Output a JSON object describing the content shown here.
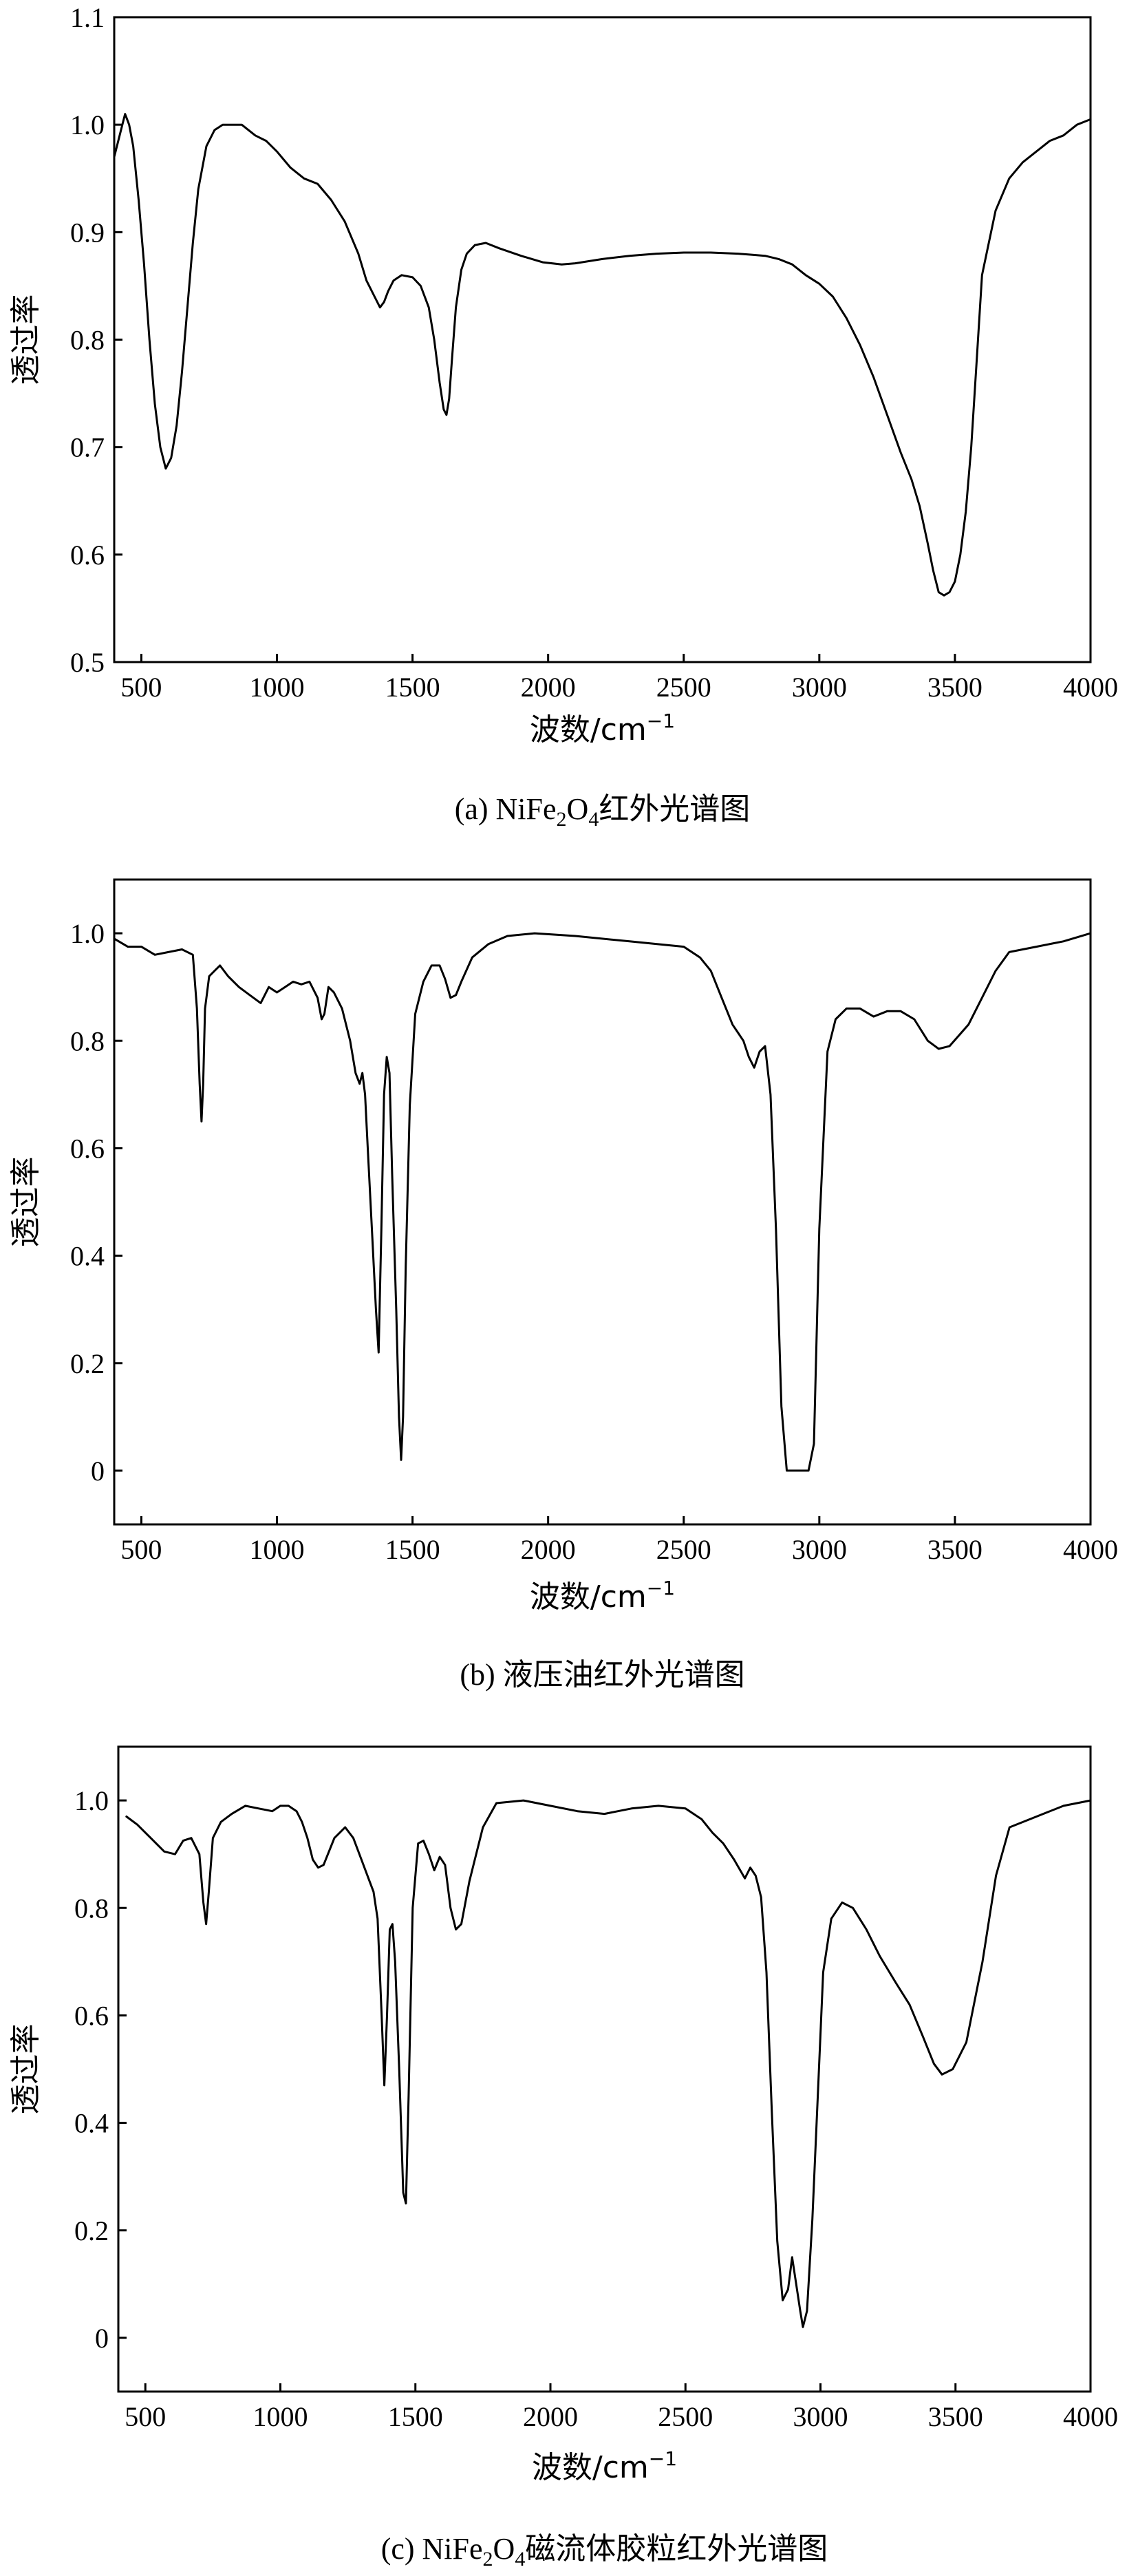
{
  "chart_data": [
    {
      "type": "line",
      "caption": "(a) NiFe₂O₄红外光谱图",
      "caption_parts": {
        "prefix": "(a) NiFe",
        "sub1": "2",
        "mid": "O",
        "sub2": "4",
        "suffix": "红外光谱图"
      },
      "xlabel": "波数/cm⁻¹",
      "xlabel_parts": {
        "base": "波数/cm",
        "sup": "−1"
      },
      "ylabel": "透过率",
      "xlim": [
        400,
        4000
      ],
      "ylim": [
        0.5,
        1.1
      ],
      "xticks": [
        500,
        1000,
        1500,
        2000,
        2500,
        3000,
        3500,
        4000
      ],
      "yticks": [
        0.5,
        0.6,
        0.7,
        0.8,
        0.9,
        1.0,
        1.1
      ],
      "ytick_labels": [
        "0.5",
        "0.6",
        "0.7",
        "0.8",
        "0.9",
        "1.0",
        "1.1"
      ],
      "grid": false,
      "series": [
        {
          "x": [
            400,
            420,
            440,
            455,
            470,
            490,
            510,
            530,
            550,
            570,
            590,
            610,
            630,
            650,
            670,
            690,
            710,
            740,
            770,
            800,
            830,
            870,
            920,
            960,
            1000,
            1050,
            1100,
            1150,
            1200,
            1250,
            1300,
            1330,
            1360,
            1380,
            1395,
            1410,
            1430,
            1460,
            1500,
            1530,
            1560,
            1580,
            1600,
            1615,
            1625,
            1635,
            1645,
            1660,
            1680,
            1700,
            1730,
            1770,
            1820,
            1900,
            1980,
            2050,
            2100,
            2200,
            2300,
            2400,
            2500,
            2600,
            2700,
            2750,
            2800,
            2850,
            2900,
            2950,
            3000,
            3050,
            3100,
            3150,
            3200,
            3250,
            3300,
            3340,
            3370,
            3400,
            3420,
            3440,
            3460,
            3480,
            3500,
            3520,
            3540,
            3560,
            3580,
            3600,
            3650,
            3700,
            3750,
            3800,
            3850,
            3900,
            3950,
            4000
          ],
          "y": [
            0.97,
            0.99,
            1.01,
            1.0,
            0.98,
            0.93,
            0.87,
            0.8,
            0.74,
            0.7,
            0.68,
            0.69,
            0.72,
            0.77,
            0.83,
            0.89,
            0.94,
            0.98,
            0.995,
            1.0,
            1.0,
            1.0,
            0.99,
            0.985,
            0.975,
            0.96,
            0.95,
            0.945,
            0.93,
            0.91,
            0.88,
            0.855,
            0.84,
            0.83,
            0.835,
            0.845,
            0.855,
            0.86,
            0.858,
            0.85,
            0.83,
            0.8,
            0.76,
            0.735,
            0.73,
            0.745,
            0.78,
            0.83,
            0.865,
            0.88,
            0.888,
            0.89,
            0.885,
            0.878,
            0.872,
            0.87,
            0.871,
            0.875,
            0.878,
            0.88,
            0.881,
            0.881,
            0.88,
            0.879,
            0.878,
            0.875,
            0.87,
            0.86,
            0.852,
            0.84,
            0.82,
            0.795,
            0.765,
            0.73,
            0.695,
            0.67,
            0.645,
            0.61,
            0.585,
            0.565,
            0.562,
            0.565,
            0.575,
            0.6,
            0.64,
            0.7,
            0.78,
            0.86,
            0.92,
            0.95,
            0.965,
            0.975,
            0.985,
            0.99,
            1.0,
            1.005
          ],
          "stroke": "#000000"
        }
      ]
    },
    {
      "type": "line",
      "caption": "(b) 液压油红外光谱图",
      "caption_parts": {
        "prefix": "(b) 液压油红外光谱图"
      },
      "xlabel": "波数/cm⁻¹",
      "xlabel_parts": {
        "base": "波数/cm",
        "sup": "−1"
      },
      "ylabel": "透过率",
      "xlim": [
        400,
        4000
      ],
      "ylim": [
        -0.1,
        1.1
      ],
      "xticks": [
        500,
        1000,
        1500,
        2000,
        2500,
        3000,
        3500,
        4000
      ],
      "yticks": [
        0,
        0.2,
        0.4,
        0.6,
        0.8,
        1.0
      ],
      "ytick_labels": [
        "0",
        "0.2",
        "0.4",
        "0.6",
        "0.8",
        "1.0"
      ],
      "grid": false,
      "series": [
        {
          "x": [
            400,
            450,
            500,
            550,
            600,
            650,
            690,
            705,
            715,
            722,
            728,
            735,
            750,
            770,
            790,
            820,
            860,
            900,
            940,
            970,
            1000,
            1030,
            1060,
            1090,
            1120,
            1150,
            1165,
            1175,
            1190,
            1210,
            1240,
            1270,
            1290,
            1305,
            1315,
            1325,
            1335,
            1350,
            1365,
            1375,
            1385,
            1395,
            1405,
            1415,
            1425,
            1440,
            1450,
            1458,
            1465,
            1475,
            1490,
            1510,
            1540,
            1570,
            1600,
            1620,
            1640,
            1660,
            1680,
            1720,
            1780,
            1850,
            1950,
            2100,
            2300,
            2500,
            2560,
            2600,
            2640,
            2680,
            2700,
            2720,
            2740,
            2760,
            2780,
            2800,
            2820,
            2840,
            2860,
            2880,
            2900,
            2920,
            2940,
            2960,
            2980,
            3000,
            3030,
            3060,
            3100,
            3150,
            3200,
            3250,
            3300,
            3350,
            3400,
            3440,
            3480,
            3550,
            3600,
            3650,
            3700,
            3800,
            3900,
            4000
          ],
          "y": [
            0.99,
            0.975,
            0.975,
            0.96,
            0.965,
            0.97,
            0.96,
            0.86,
            0.72,
            0.65,
            0.72,
            0.86,
            0.92,
            0.93,
            0.94,
            0.92,
            0.9,
            0.885,
            0.87,
            0.9,
            0.89,
            0.9,
            0.91,
            0.905,
            0.91,
            0.88,
            0.84,
            0.85,
            0.9,
            0.89,
            0.86,
            0.8,
            0.74,
            0.72,
            0.74,
            0.7,
            0.6,
            0.45,
            0.3,
            0.22,
            0.45,
            0.7,
            0.77,
            0.74,
            0.55,
            0.3,
            0.1,
            0.02,
            0.1,
            0.38,
            0.68,
            0.85,
            0.91,
            0.94,
            0.94,
            0.915,
            0.88,
            0.885,
            0.91,
            0.955,
            0.98,
            0.995,
            1.0,
            0.995,
            0.985,
            0.975,
            0.955,
            0.93,
            0.88,
            0.83,
            0.815,
            0.8,
            0.77,
            0.75,
            0.78,
            0.79,
            0.7,
            0.45,
            0.12,
            0.0,
            0.0,
            0.0,
            0.0,
            0.0,
            0.05,
            0.45,
            0.78,
            0.84,
            0.86,
            0.86,
            0.845,
            0.855,
            0.855,
            0.84,
            0.8,
            0.785,
            0.79,
            0.83,
            0.88,
            0.93,
            0.965,
            0.975,
            0.985,
            1.0
          ],
          "stroke": "#000000"
        }
      ]
    },
    {
      "type": "line",
      "caption": "(c) NiFe₂O₄磁流体胶粒红外光谱图",
      "caption_parts": {
        "prefix": "(c) NiFe",
        "sub1": "2",
        "mid": "O",
        "sub2": "4",
        "suffix": "磁流体胶粒红外光谱图"
      },
      "xlabel": "波数/cm⁻¹",
      "xlabel_parts": {
        "base": "波数/cm",
        "sup": "−1"
      },
      "ylabel": "透过率",
      "xlim": [
        400,
        4000
      ],
      "ylim": [
        -0.1,
        1.1
      ],
      "xticks": [
        500,
        1000,
        1500,
        2000,
        2500,
        3000,
        3500,
        4000
      ],
      "yticks": [
        0,
        0.2,
        0.4,
        0.6,
        0.8,
        1.0
      ],
      "ytick_labels": [
        "0",
        "0.2",
        "0.4",
        "0.6",
        "0.8",
        "1.0"
      ],
      "grid": false,
      "series": [
        {
          "x": [
            430,
            470,
            520,
            570,
            610,
            640,
            670,
            700,
            715,
            725,
            735,
            750,
            780,
            820,
            870,
            920,
            970,
            1000,
            1030,
            1060,
            1080,
            1100,
            1120,
            1140,
            1160,
            1200,
            1240,
            1270,
            1300,
            1330,
            1345,
            1360,
            1375,
            1385,
            1395,
            1405,
            1415,
            1425,
            1440,
            1455,
            1465,
            1475,
            1490,
            1510,
            1530,
            1550,
            1570,
            1590,
            1610,
            1630,
            1650,
            1670,
            1700,
            1750,
            1800,
            1900,
            2000,
            2100,
            2200,
            2300,
            2400,
            2500,
            2560,
            2600,
            2640,
            2680,
            2720,
            2740,
            2760,
            2780,
            2800,
            2820,
            2840,
            2860,
            2880,
            2895,
            2910,
            2925,
            2935,
            2950,
            2970,
            2990,
            3010,
            3040,
            3080,
            3120,
            3170,
            3220,
            3280,
            3330,
            3380,
            3420,
            3450,
            3490,
            3540,
            3600,
            3650,
            3700,
            3800,
            3900,
            4000
          ],
          "y": [
            0.97,
            0.955,
            0.93,
            0.905,
            0.9,
            0.925,
            0.93,
            0.9,
            0.81,
            0.77,
            0.83,
            0.93,
            0.96,
            0.975,
            0.99,
            0.985,
            0.98,
            0.99,
            0.99,
            0.98,
            0.96,
            0.93,
            0.89,
            0.875,
            0.88,
            0.93,
            0.95,
            0.93,
            0.89,
            0.85,
            0.83,
            0.78,
            0.6,
            0.47,
            0.6,
            0.76,
            0.77,
            0.7,
            0.5,
            0.27,
            0.25,
            0.45,
            0.8,
            0.92,
            0.925,
            0.9,
            0.87,
            0.895,
            0.88,
            0.8,
            0.76,
            0.77,
            0.85,
            0.95,
            0.995,
            1.0,
            0.99,
            0.98,
            0.975,
            0.985,
            0.99,
            0.985,
            0.965,
            0.94,
            0.92,
            0.89,
            0.855,
            0.875,
            0.86,
            0.82,
            0.68,
            0.42,
            0.18,
            0.07,
            0.09,
            0.15,
            0.1,
            0.05,
            0.02,
            0.05,
            0.22,
            0.45,
            0.68,
            0.78,
            0.81,
            0.8,
            0.76,
            0.71,
            0.66,
            0.62,
            0.56,
            0.51,
            0.49,
            0.5,
            0.55,
            0.7,
            0.86,
            0.95,
            0.97,
            0.99,
            1.0
          ],
          "stroke": "#000000"
        }
      ]
    }
  ]
}
